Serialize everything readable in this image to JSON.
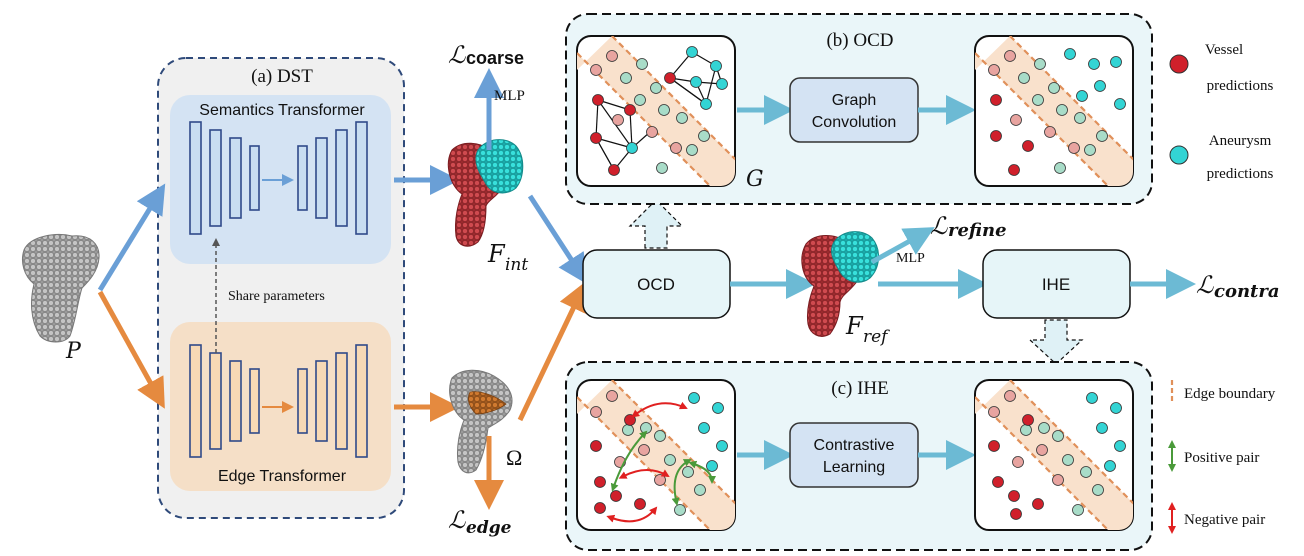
{
  "dst": {
    "title": "(a) DST",
    "semantics_label": "Semantics Transformer",
    "edge_label": "Edge Transformer",
    "share_label": "Share parameters"
  },
  "inputs": {
    "p_label": "P"
  },
  "outputs": {
    "coarse_loss": "ℒcoarse",
    "coarse_loss_main": "ℒ",
    "coarse_loss_sub": "coarse",
    "mlp_top": "MLP",
    "f_int_main": "F",
    "f_int_sub": "int",
    "omega_label": "Ω",
    "edge_loss_main": "ℒ",
    "edge_loss_sub": "edge",
    "f_ref_main": "F",
    "f_ref_sub": "ref",
    "refine_loss_main": "ℒ",
    "refine_loss_sub": "refine",
    "mlp_mid": "MLP",
    "contra_loss_main": "ℒ",
    "contra_loss_sub": "contra"
  },
  "middle": {
    "ocd_label": "OCD",
    "ihe_label": "IHE"
  },
  "ocd_panel": {
    "title": "(b) OCD",
    "box_line1": "Graph",
    "box_line2": "Convolution",
    "g_label": "G"
  },
  "ihe_panel": {
    "title": "(c) IHE",
    "box_line1": "Contrastive",
    "box_line2": "Learning"
  },
  "legend": {
    "vessel_line1": "Vessel",
    "vessel_line2": "predictions",
    "aneurysm_line1": "Aneurysm",
    "aneurysm_line2": "predictions",
    "edge_boundary": "Edge boundary",
    "positive_pair": "Positive pair",
    "negative_pair": "Negative pair"
  },
  "colors": {
    "blue_arrow": "#6a9fd6",
    "orange_arrow": "#e58a3f",
    "cyan_arrow": "#6cbad4",
    "vessel": "#d0202b",
    "aneurysm": "#33d4d4",
    "edge_boundary": "#e0905a",
    "positive": "#4a9a3a",
    "negative": "#e02020"
  }
}
